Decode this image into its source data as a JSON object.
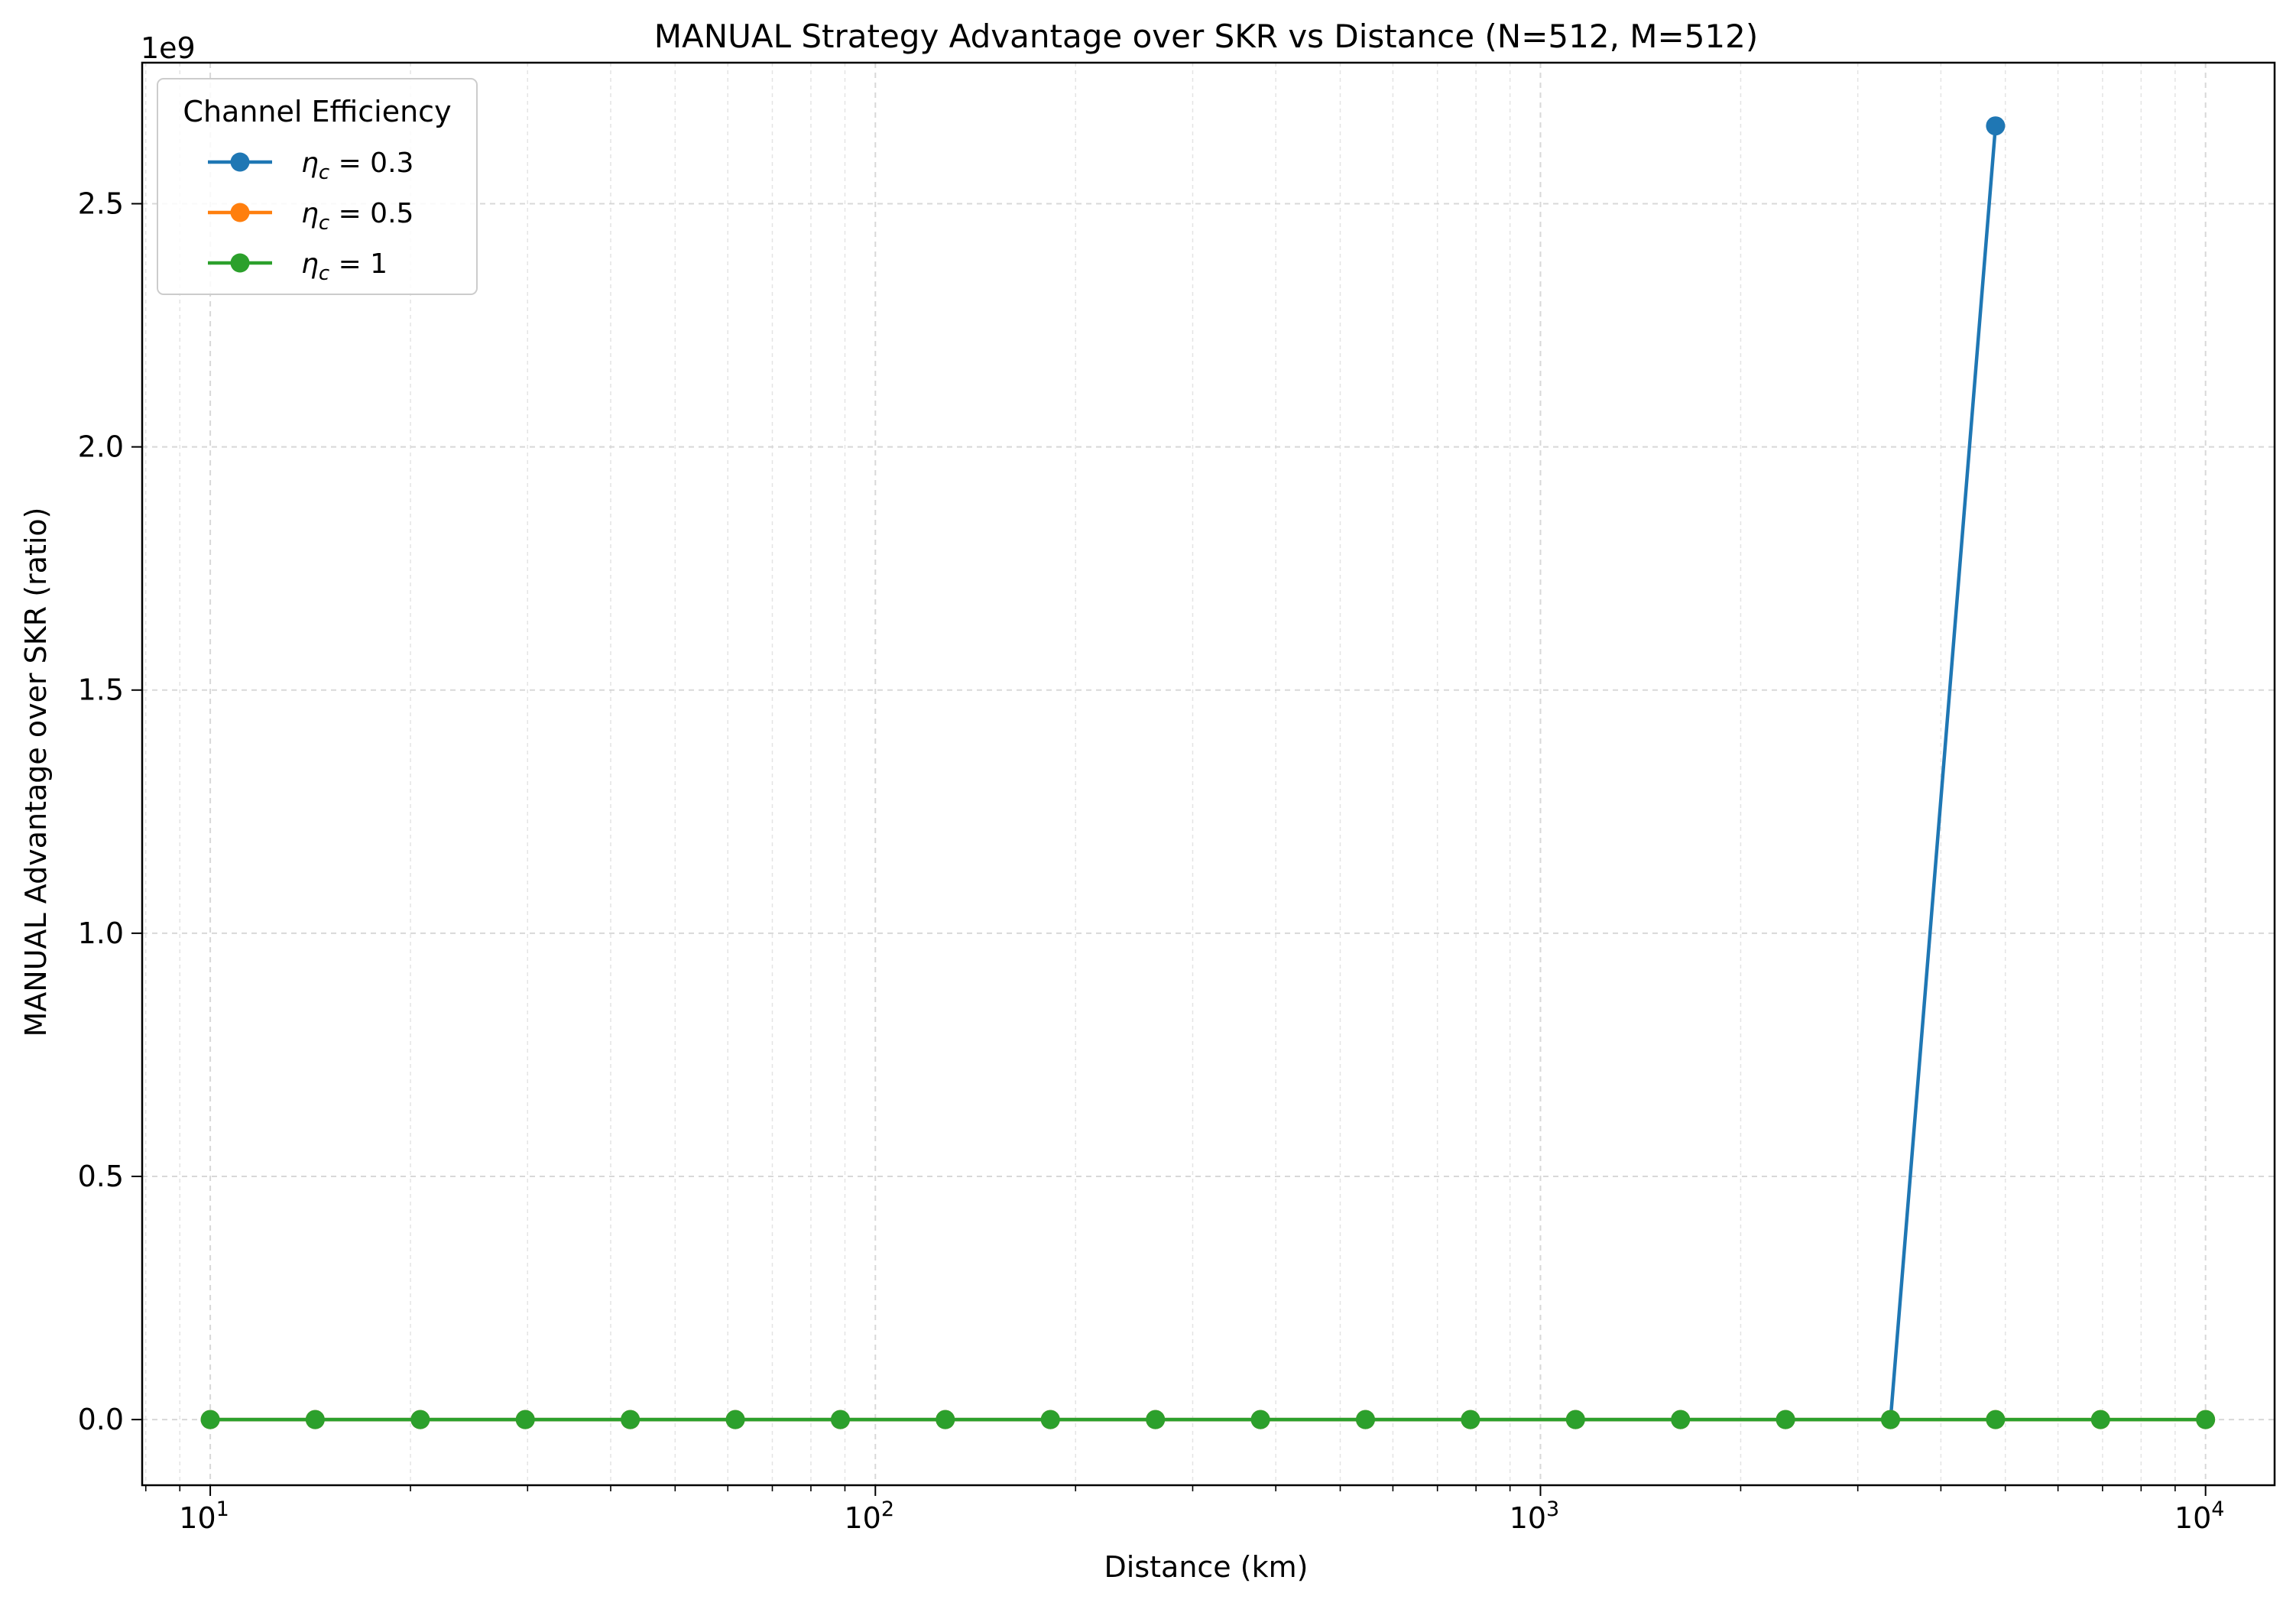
{
  "chart_data": {
    "type": "line",
    "title": "MANUAL Strategy Advantage over SKR vs Distance (N=512, M=512)",
    "xlabel": "Distance (km)",
    "ylabel": "MANUAL Advantage over SKR (ratio)",
    "x_scale": "log",
    "xlim": [
      7.9,
      12700
    ],
    "ylim": [
      -135000000,
      2790000000
    ],
    "y_offset_label": "1e9",
    "y_ticks": [
      0,
      500000000,
      1000000000,
      1500000000,
      2000000000,
      2500000000
    ],
    "y_tick_labels": [
      "0.0",
      "0.5",
      "1.0",
      "1.5",
      "2.0",
      "2.5"
    ],
    "x_ticks": [
      10,
      100,
      1000,
      10000
    ],
    "x_tick_labels": [
      {
        "base": "10",
        "exp": "1"
      },
      {
        "base": "10",
        "exp": "2"
      },
      {
        "base": "10",
        "exp": "3"
      },
      {
        "base": "10",
        "exp": "4"
      }
    ],
    "grid": true,
    "legend": {
      "title": "Channel Efficiency",
      "placement": "upper-left",
      "entries": [
        {
          "symbol": "η",
          "sub": "c",
          "value": " = 0.3"
        },
        {
          "symbol": "η",
          "sub": "c",
          "value": " = 0.5"
        },
        {
          "symbol": "η",
          "sub": "c",
          "value": " = 1"
        }
      ]
    },
    "x": [
      10,
      14.38,
      20.69,
      29.76,
      42.81,
      61.58,
      88.59,
      127.4,
      183.3,
      263.7,
      379.3,
      545.6,
      784.8,
      1129,
      1624,
      2336,
      3360,
      4833,
      6952,
      10000
    ],
    "series": [
      {
        "color": "#1f77b4",
        "values": [
          0,
          0,
          0,
          0,
          0,
          0,
          0,
          0,
          0,
          0,
          0,
          0,
          0,
          0,
          0,
          0,
          0,
          2660000000,
          null,
          null
        ]
      },
      {
        "color": "#ff7f0e",
        "values": [
          0,
          0,
          0,
          0,
          0,
          0,
          0,
          0,
          0,
          0,
          0,
          0,
          0,
          0,
          0,
          0,
          0,
          0,
          0,
          0
        ]
      },
      {
        "color": "#2ca02c",
        "values": [
          0,
          0,
          0,
          0,
          0,
          0,
          0,
          0,
          0,
          0,
          0,
          0,
          0,
          0,
          0,
          0,
          0,
          0,
          0,
          0
        ]
      }
    ]
  }
}
